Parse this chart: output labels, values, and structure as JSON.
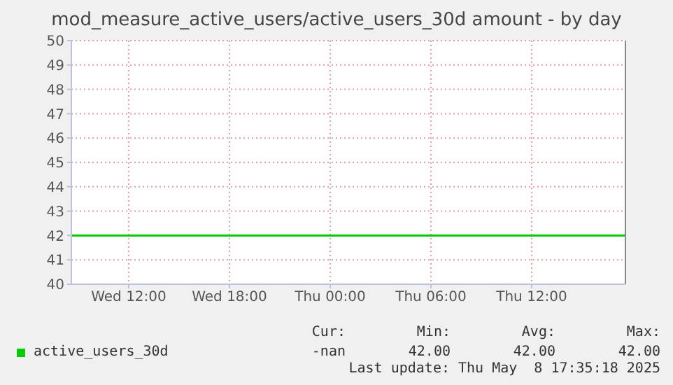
{
  "chart_data": {
    "type": "line",
    "title": "mod_measure_active_users/active_users_30d amount - by day",
    "xlim": [
      "2025-05-07T08:35",
      "2025-05-08T17:35"
    ],
    "xticks": [
      {
        "value": "2025-05-07T12:00",
        "label": "Wed 12:00"
      },
      {
        "value": "2025-05-07T18:00",
        "label": "Wed 18:00"
      },
      {
        "value": "2025-05-08T00:00",
        "label": "Thu 00:00"
      },
      {
        "value": "2025-05-08T06:00",
        "label": "Thu 06:00"
      },
      {
        "value": "2025-05-08T12:00",
        "label": "Thu 12:00"
      }
    ],
    "ylim": [
      40,
      50
    ],
    "yticks": [
      40,
      41,
      42,
      43,
      44,
      45,
      46,
      47,
      48,
      49,
      50
    ],
    "series": [
      {
        "name": "active_users_30d",
        "color": "#00cc00",
        "x": [
          "2025-05-07T08:35",
          "2025-05-08T17:35"
        ],
        "values": [
          42,
          42
        ]
      }
    ],
    "ref_lines": [
      {
        "axis": "x",
        "value": "2025-05-08T17:35",
        "color": "#888888"
      }
    ],
    "annotations": [
      "Cur:",
      "Min:",
      "Avg:",
      "Max:",
      "-nan",
      "42.00",
      "42.00",
      "42.00",
      "Last update: Thu May  8 17:35:18 2025"
    ],
    "grid": true,
    "legend": "bottom",
    "marker": "none",
    "line_style": "solid"
  }
}
